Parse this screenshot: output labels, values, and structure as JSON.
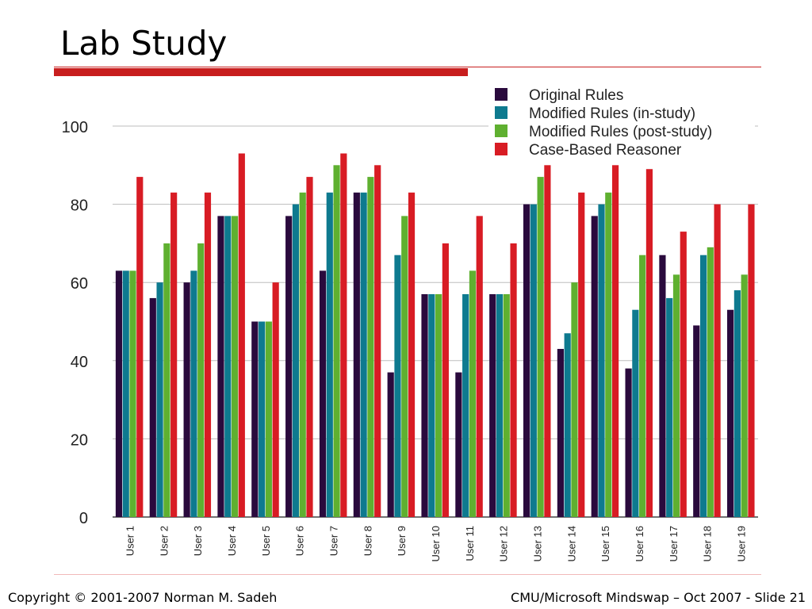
{
  "slide": {
    "title": "Lab Study",
    "footer_left": "Copyright © 2001-2007 Norman M. Sadeh",
    "footer_right": "CMU/Microsoft Mindswap – Oct  2007 - Slide 21"
  },
  "chart_data": {
    "type": "bar",
    "title": "",
    "xlabel": "",
    "ylabel": "",
    "ylim": [
      0,
      100
    ],
    "yticks": [
      0,
      20,
      40,
      60,
      80,
      100
    ],
    "grid": true,
    "legend_position": "top-right",
    "categories": [
      "User 1",
      "User 2",
      "User 3",
      "User 4",
      "User 5",
      "User 6",
      "User 7",
      "User 8",
      "User 9",
      "User 10",
      "User 11",
      "User 12",
      "User 13",
      "User 14",
      "User 15",
      "User 16",
      "User 17",
      "User 18",
      "User 19"
    ],
    "series": [
      {
        "name": "Original Rules",
        "color": "#2a0a3d",
        "values": [
          63,
          56,
          60,
          77,
          50,
          77,
          63,
          83,
          37,
          57,
          37,
          57,
          80,
          43,
          77,
          38,
          67,
          49,
          53
        ]
      },
      {
        "name": "Modified Rules (in-study)",
        "color": "#0e7a8f",
        "values": [
          63,
          60,
          63,
          77,
          50,
          80,
          83,
          83,
          67,
          57,
          57,
          57,
          80,
          47,
          80,
          53,
          56,
          67,
          58
        ]
      },
      {
        "name": "Modified Rules (post-study)",
        "color": "#5fb030",
        "values": [
          63,
          70,
          70,
          77,
          50,
          83,
          90,
          87,
          77,
          57,
          63,
          57,
          87,
          60,
          83,
          67,
          62,
          69,
          62
        ]
      },
      {
        "name": "Case-Based Reasoner",
        "color": "#d81c24",
        "values": [
          87,
          83,
          83,
          93,
          60,
          87,
          93,
          90,
          83,
          70,
          77,
          70,
          90,
          83,
          90,
          89,
          73,
          80,
          80
        ]
      }
    ]
  }
}
